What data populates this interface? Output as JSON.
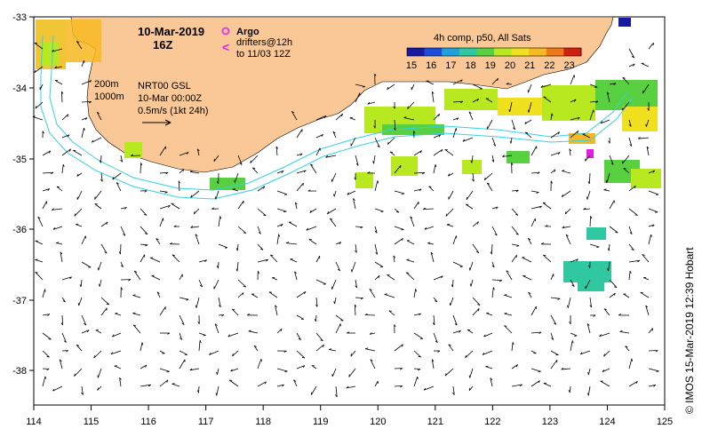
{
  "map": {
    "title_date": "10-Mar-2019",
    "title_hour": "16Z",
    "argo_label": "Argo",
    "drifters_label": "drifters@12h",
    "drifters_range": "to 11/03 12Z",
    "drifter_symbol": "<",
    "isobath_200": "200m",
    "isobath_1000": "1000m",
    "product": "NRT00 GSL",
    "product_time": "10-Mar 00:00Z",
    "scale_label": "0.5m/s (1kt 24h)",
    "legend_title": "4h comp, p50, All Sats",
    "legend_ticks": [
      "15",
      "16",
      "17",
      "18",
      "19",
      "20",
      "21",
      "22",
      "23"
    ],
    "credit": "©  IMOS 15-Mar-2019 12:39 Hobart"
  },
  "axes": {
    "x_labels": [
      "114",
      "115",
      "116",
      "117",
      "118",
      "119",
      "120",
      "121",
      "122",
      "123",
      "124",
      "125"
    ],
    "y_labels": [
      "-33",
      "-34",
      "-35",
      "-36",
      "-37",
      "-38"
    ]
  },
  "colors": {
    "land": "#fac896",
    "isobath": "#34d2e6",
    "argo": "#e040e0",
    "drifter": "#e020e0",
    "sst_scale": [
      "#1818a0",
      "#1c4cd8",
      "#20a0d8",
      "#30c8a0",
      "#58d040",
      "#b8e820",
      "#f0e020",
      "#f8b820",
      "#f07818",
      "#d02010"
    ]
  }
}
